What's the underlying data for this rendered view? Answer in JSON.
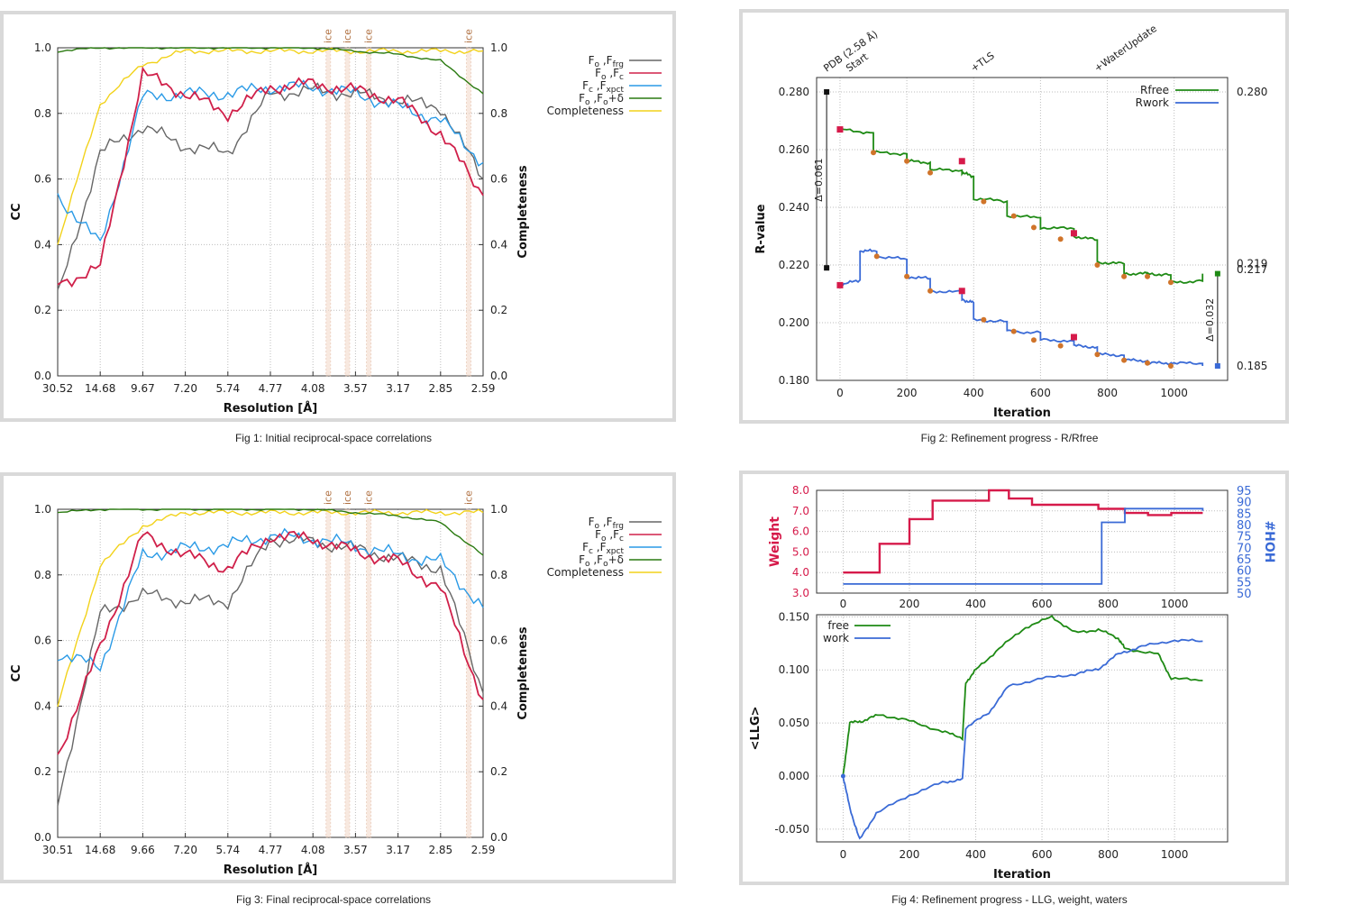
{
  "figures": {
    "fig1": {
      "caption": "Fig 1:  Initial reciprocal-space correlations",
      "xlabel": "Resolution [Å]",
      "ylabel": "CC",
      "y2label": "Completeness",
      "xticks": [
        "30.52",
        "14.68",
        "9.67",
        "7.20",
        "5.74",
        "4.77",
        "4.08",
        "3.57",
        "3.17",
        "2.85",
        "2.59"
      ],
      "yticks": [
        "0.0",
        "0.2",
        "0.4",
        "0.6",
        "0.8",
        "1.0"
      ],
      "ice_label": "ice"
    },
    "fig2": {
      "caption": "Fig 2:  Refinement progress - R/Rfree",
      "xlabel": "Iteration",
      "ylabel": "R-value",
      "xticks": [
        "0",
        "200",
        "400",
        "600",
        "800",
        "1000"
      ],
      "yticks": [
        "0.180",
        "0.200",
        "0.220",
        "0.240",
        "0.260",
        "0.280"
      ],
      "y2ticks": [
        "0.280",
        "0.219",
        "0.217",
        "0.185"
      ],
      "events": [
        "PDB (2.58 Å)",
        "Start",
        "+TLS",
        "+WaterUpdate"
      ],
      "delta_left": "Δ=0.061",
      "delta_right": "Δ=0.032"
    },
    "fig3": {
      "caption": "Fig 3:  Final reciprocal-space correlations",
      "xlabel": "Resolution [Å]",
      "ylabel": "CC",
      "y2label": "Completeness",
      "xticks": [
        "30.51",
        "14.68",
        "9.66",
        "7.20",
        "5.74",
        "4.77",
        "4.08",
        "3.57",
        "3.17",
        "2.85",
        "2.59"
      ],
      "yticks": [
        "0.0",
        "0.2",
        "0.4",
        "0.6",
        "0.8",
        "1.0"
      ],
      "ice_label": "ice"
    },
    "fig4": {
      "caption": "Fig 4:  Refinement progress - LLG, weight, waters",
      "xlabel": "Iteration",
      "ylabel_top": "Weight",
      "y2label_top": "#HOH",
      "ylabel_bottom": "<LLG>",
      "xticks": [
        "0",
        "200",
        "400",
        "600",
        "800",
        "1000"
      ],
      "yticks_top": [
        "3.0",
        "4.0",
        "5.0",
        "6.0",
        "7.0",
        "8.0"
      ],
      "y2ticks_top": [
        "50",
        "55",
        "60",
        "65",
        "70",
        "75",
        "80",
        "85",
        "90",
        "95"
      ],
      "yticks_bottom": [
        "-0.050",
        "0.000",
        "0.050",
        "0.100",
        "0.150"
      ]
    }
  },
  "legend_cc": [
    {
      "main": "F",
      "sub": "o",
      "rest": ",F",
      "sub2": "frg",
      "color": "#666666"
    },
    {
      "main": "F",
      "sub": "o",
      "rest": ",F",
      "sub2": "c",
      "color": "#d0204a"
    },
    {
      "main": "F",
      "sub": "c",
      "rest": ",F",
      "sub2": "xpct",
      "color": "#2a9ae6"
    },
    {
      "main": "F",
      "sub": "o",
      "rest": ",F",
      "sub2": "o",
      "tail": "+δ",
      "color": "#2a7a10"
    },
    {
      "main": "Completeness",
      "sub": "",
      "rest": "",
      "sub2": "",
      "color": "#f2d21a"
    }
  ],
  "legend_r": [
    {
      "label": "Rfree",
      "color": "#1e8a14"
    },
    {
      "label": "Rwork",
      "color": "#3a6ad6"
    }
  ],
  "legend_llg": [
    {
      "label": "free",
      "color": "#1e8a14"
    },
    {
      "label": "work",
      "color": "#3a6ad6"
    }
  ],
  "chart_data": [
    {
      "type": "line",
      "title": "Initial reciprocal-space correlations",
      "xlabel": "Resolution [Å]",
      "ylabel": "CC",
      "ylim": [
        0,
        1
      ],
      "y2lim": [
        0,
        1
      ],
      "x": [
        "30.52",
        "14.68",
        "9.67",
        "7.20",
        "5.74",
        "4.77",
        "4.08",
        "3.57",
        "3.17",
        "2.85",
        "2.59"
      ],
      "ice_rings": [
        3.92,
        3.67,
        3.44,
        2.67
      ],
      "series": [
        {
          "name": "Fo,Ffrg",
          "values": [
            0.24,
            0.68,
            0.76,
            0.7,
            0.68,
            0.86,
            0.87,
            0.86,
            0.84,
            0.82,
            0.6
          ]
        },
        {
          "name": "Fo,Fc",
          "values": [
            0.28,
            0.33,
            0.92,
            0.86,
            0.8,
            0.88,
            0.89,
            0.87,
            0.84,
            0.74,
            0.55
          ]
        },
        {
          "name": "Fc,Fxpct",
          "values": [
            0.55,
            0.4,
            0.85,
            0.86,
            0.86,
            0.88,
            0.88,
            0.86,
            0.82,
            0.78,
            0.65
          ]
        },
        {
          "name": "Fo,Fo+δ",
          "values": [
            0.99,
            1.0,
            1.0,
            1.0,
            1.0,
            1.0,
            1.0,
            0.99,
            0.98,
            0.96,
            0.86
          ]
        },
        {
          "name": "Completeness",
          "values": [
            0.4,
            0.83,
            0.95,
            0.99,
            0.99,
            0.99,
            0.99,
            0.99,
            0.99,
            0.99,
            0.99
          ]
        }
      ]
    },
    {
      "type": "line",
      "title": "Refinement progress - R/Rfree",
      "xlabel": "Iteration",
      "ylabel": "R-value",
      "ylim": [
        0.18,
        0.285
      ],
      "xlim": [
        -70,
        1160
      ],
      "series": [
        {
          "name": "Rfree",
          "x": [
            0,
            100,
            200,
            270,
            365,
            400,
            500,
            600,
            700,
            770,
            850,
            920,
            990,
            1085
          ],
          "values": [
            0.267,
            0.259,
            0.256,
            0.253,
            0.252,
            0.243,
            0.237,
            0.233,
            0.23,
            0.221,
            0.217,
            0.217,
            0.214,
            0.217
          ]
        },
        {
          "name": "Rwork",
          "x": [
            0,
            60,
            110,
            200,
            270,
            365,
            400,
            500,
            600,
            700,
            770,
            850,
            920,
            990,
            1085
          ],
          "values": [
            0.213,
            0.225,
            0.223,
            0.216,
            0.211,
            0.208,
            0.201,
            0.197,
            0.194,
            0.192,
            0.189,
            0.187,
            0.186,
            0.186,
            0.185
          ]
        }
      ],
      "endpoints": {
        "pdb": [
          0.28,
          0.219
        ],
        "final": [
          0.217,
          0.185
        ]
      }
    },
    {
      "type": "line",
      "title": "Final reciprocal-space correlations",
      "xlabel": "Resolution [Å]",
      "ylabel": "CC",
      "ylim": [
        0,
        1
      ],
      "y2lim": [
        0,
        1
      ],
      "x": [
        "30.51",
        "14.68",
        "9.66",
        "7.20",
        "5.74",
        "4.77",
        "4.08",
        "3.57",
        "3.17",
        "2.85",
        "2.59"
      ],
      "ice_rings": [
        3.92,
        3.67,
        3.44,
        2.67
      ],
      "series": [
        {
          "name": "Fo,Ffrg",
          "values": [
            0.1,
            0.68,
            0.74,
            0.72,
            0.72,
            0.91,
            0.9,
            0.88,
            0.85,
            0.82,
            0.44
          ]
        },
        {
          "name": "Fo,Fc",
          "values": [
            0.25,
            0.58,
            0.92,
            0.86,
            0.82,
            0.92,
            0.91,
            0.87,
            0.84,
            0.76,
            0.42
          ]
        },
        {
          "name": "Fc,Fxpct",
          "values": [
            0.56,
            0.52,
            0.86,
            0.88,
            0.89,
            0.92,
            0.91,
            0.89,
            0.86,
            0.84,
            0.7
          ]
        },
        {
          "name": "Fo,Fo+δ",
          "values": [
            0.99,
            1.0,
            1.0,
            1.0,
            1.0,
            1.0,
            1.0,
            0.99,
            0.98,
            0.96,
            0.86
          ]
        },
        {
          "name": "Completeness",
          "values": [
            0.4,
            0.83,
            0.95,
            0.99,
            0.99,
            0.99,
            0.99,
            0.99,
            0.99,
            0.99,
            0.99
          ]
        }
      ]
    },
    {
      "type": "line",
      "title": "Refinement progress - LLG, weight, waters",
      "xlabel": "Iteration",
      "weight": {
        "ylabel": "Weight",
        "ylim": [
          3,
          8
        ],
        "x": [
          0,
          110,
          200,
          270,
          440,
          500,
          570,
          770,
          850,
          920,
          990,
          1085
        ],
        "values": [
          4.0,
          5.4,
          6.6,
          7.5,
          8.0,
          7.6,
          7.3,
          7.1,
          6.9,
          6.8,
          6.9,
          6.9
        ]
      },
      "waters": {
        "ylabel": "#HOH",
        "ylim": [
          50,
          95
        ],
        "x": [
          0,
          770,
          780,
          850,
          1085
        ],
        "values": [
          54,
          54,
          81,
          87,
          86
        ]
      },
      "llg": {
        "ylabel": "<LLG>",
        "ylim": [
          -0.062,
          0.152
        ],
        "series": [
          {
            "name": "free",
            "x": [
              0,
              20,
              60,
              110,
              200,
              300,
              360,
              370,
              400,
              470,
              550,
              630,
              700,
              770,
              830,
              850,
              950,
              990,
              1085
            ],
            "values": [
              0.0,
              0.05,
              0.052,
              0.058,
              0.052,
              0.042,
              0.036,
              0.088,
              0.1,
              0.12,
              0.14,
              0.15,
              0.135,
              0.138,
              0.13,
              0.12,
              0.115,
              0.092,
              0.09
            ]
          },
          {
            "name": "work",
            "x": [
              0,
              20,
              50,
              100,
              200,
              300,
              360,
              370,
              440,
              500,
              600,
              700,
              770,
              830,
              900,
              1000,
              1085
            ],
            "values": [
              0.0,
              -0.03,
              -0.06,
              -0.035,
              -0.018,
              -0.006,
              -0.003,
              0.045,
              0.06,
              0.085,
              0.092,
              0.096,
              0.101,
              0.115,
              0.122,
              0.128,
              0.127
            ]
          }
        ]
      }
    }
  ]
}
